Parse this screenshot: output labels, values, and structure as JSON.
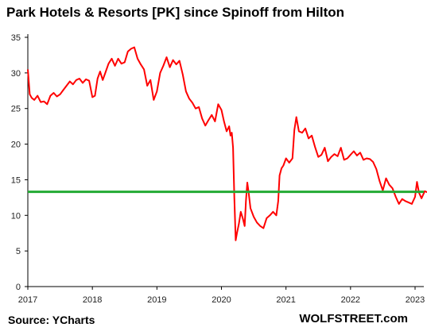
{
  "title": "Park Hotels & Resorts [PK] since Spinoff from Hilton",
  "source": "Source: YCharts",
  "brand": "WOLFSTREET.com",
  "colors": {
    "price_line": "#ff0000",
    "reference_line": "#22aa33",
    "axis": "#000000"
  },
  "chart_data": {
    "type": "line",
    "title": "Park Hotels & Resorts [PK] since Spinoff from Hilton",
    "xlabel": "",
    "ylabel": "",
    "xlim": [
      2017.0,
      2023.45
    ],
    "ylim": [
      0,
      35
    ],
    "yticks": [
      "0",
      "5",
      "10",
      "15",
      "20",
      "25",
      "30",
      "35"
    ],
    "xticks": [
      {
        "x": 2017,
        "label": "2017"
      },
      {
        "x": 2018,
        "label": "2018"
      },
      {
        "x": 2019,
        "label": "2019"
      },
      {
        "x": 2020,
        "label": "2020"
      },
      {
        "x": 2021,
        "label": "2021"
      },
      {
        "x": 2022,
        "label": "2022"
      },
      {
        "x": 2023,
        "label": "2023"
      }
    ],
    "grid": false,
    "legend": "none",
    "series": [
      {
        "x": [
          2017.0,
          2017.03,
          2017.06,
          2017.1,
          2017.15,
          2017.2,
          2017.25,
          2017.3,
          2017.35,
          2017.4,
          2017.45,
          2017.5,
          2017.55,
          2017.6,
          2017.65,
          2017.7,
          2017.75,
          2017.8,
          2017.85,
          2017.9,
          2017.95,
          2018.0,
          2018.04,
          2018.08,
          2018.12,
          2018.16,
          2018.2,
          2018.25,
          2018.3,
          2018.35,
          2018.4,
          2018.45,
          2018.5,
          2018.55,
          2018.6,
          2018.65,
          2018.7,
          2018.75,
          2018.8,
          2018.85,
          2018.9,
          2018.95,
          2019.0,
          2019.05,
          2019.1,
          2019.15,
          2019.2,
          2019.25,
          2019.3,
          2019.35,
          2019.4,
          2019.45,
          2019.5,
          2019.55,
          2019.6,
          2019.65,
          2019.7,
          2019.75,
          2019.8,
          2019.85,
          2019.9,
          2019.95,
          2020.0,
          2020.04,
          2020.08,
          2020.12,
          2020.14,
          2020.16,
          2020.18,
          2020.2,
          2020.22,
          2020.24,
          2020.27,
          2020.3,
          2020.33,
          2020.36,
          2020.38,
          2020.4,
          2020.42,
          2020.45,
          2020.5,
          2020.55,
          2020.6,
          2020.65,
          2020.7,
          2020.75,
          2020.8,
          2020.85,
          2020.88,
          2020.9,
          2020.93,
          2020.96,
          2021.0,
          2021.05,
          2021.1,
          2021.13,
          2021.16,
          2021.2,
          2021.25,
          2021.3,
          2021.35,
          2021.4,
          2021.45,
          2021.5,
          2021.55,
          2021.6,
          2021.65,
          2021.7,
          2021.75,
          2021.8,
          2021.85,
          2021.9,
          2021.95,
          2022.0,
          2022.05,
          2022.1,
          2022.15,
          2022.2,
          2022.25,
          2022.3,
          2022.35,
          2022.4,
          2022.45,
          2022.5,
          2022.55,
          2022.6,
          2022.65,
          2022.7,
          2022.75,
          2022.8,
          2022.85,
          2022.9,
          2022.95,
          2023.0,
          2023.03,
          2023.06,
          2023.1,
          2023.15,
          2023.2,
          2023.25,
          2023.3,
          2023.35,
          2023.4,
          2023.43,
          2023.45
        ],
        "values": [
          30.5,
          27.0,
          26.5,
          26.2,
          26.8,
          25.9,
          26.0,
          25.6,
          26.8,
          27.2,
          26.7,
          27.0,
          27.6,
          28.2,
          28.8,
          28.4,
          29.0,
          29.2,
          28.6,
          29.1,
          28.9,
          26.6,
          26.8,
          29.2,
          30.2,
          29.0,
          30.0,
          31.3,
          32.0,
          31.0,
          32.0,
          31.3,
          31.5,
          33.0,
          33.4,
          33.6,
          32.0,
          31.2,
          30.5,
          28.2,
          29.0,
          26.2,
          27.4,
          30.0,
          31.0,
          32.2,
          30.8,
          31.8,
          31.2,
          31.7,
          29.8,
          27.4,
          26.4,
          25.8,
          25.0,
          25.2,
          23.6,
          22.6,
          23.4,
          24.1,
          23.2,
          25.6,
          24.8,
          23.2,
          21.8,
          22.5,
          21.2,
          21.6,
          19.5,
          12.5,
          6.5,
          7.5,
          8.8,
          10.5,
          9.6,
          8.5,
          12.0,
          14.6,
          13.3,
          11.0,
          9.8,
          9.0,
          8.5,
          8.2,
          9.6,
          10.0,
          10.5,
          10.0,
          12.0,
          15.6,
          16.6,
          17.0,
          18.0,
          17.4,
          18.0,
          22.0,
          23.8,
          21.8,
          21.6,
          22.2,
          20.8,
          21.2,
          19.6,
          18.2,
          18.5,
          19.5,
          17.6,
          18.2,
          18.6,
          18.3,
          19.5,
          17.8,
          18.0,
          18.5,
          19.0,
          18.4,
          18.8,
          17.8,
          18.0,
          17.9,
          17.5,
          16.5,
          14.8,
          13.5,
          15.2,
          14.3,
          13.8,
          12.6,
          11.6,
          12.3,
          12.0,
          11.8,
          11.6,
          12.6,
          14.7,
          13.2,
          12.4,
          13.4,
          13.2,
          11.2,
          12.0,
          13.0,
          13.2,
          13.6,
          13.9
        ]
      }
    ],
    "reference_line": {
      "y": 13.3
    }
  }
}
